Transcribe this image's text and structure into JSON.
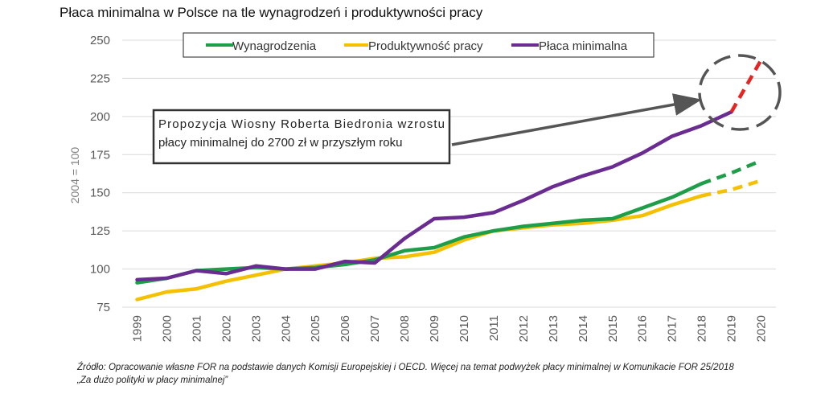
{
  "chart_data": {
    "type": "line",
    "title": "Płaca minimalna w Polsce na tle wynagrodzeń i produktywności pracy",
    "ylabel": "2004 = 100",
    "xlabel": "",
    "ylim": [
      75,
      250
    ],
    "yticks": [
      75,
      100,
      125,
      150,
      175,
      200,
      225,
      250
    ],
    "grid": "horizontal",
    "legend_position": "top",
    "x": [
      "1999",
      "2000",
      "2001",
      "2002",
      "2003",
      "2004",
      "2005",
      "2006",
      "2007",
      "2008",
      "2009",
      "2010",
      "2011",
      "2012",
      "2013",
      "2014",
      "2015",
      "2016",
      "2017",
      "2018",
      "2019",
      "2020"
    ],
    "series": [
      {
        "name": "Wynagrodzenia",
        "color": "#1f9e4a",
        "values": [
          91,
          94,
          99,
          100,
          101,
          100,
          101,
          103,
          106,
          112,
          114,
          121,
          125,
          128,
          130,
          132,
          133,
          140,
          147,
          156,
          null,
          null
        ],
        "projection": {
          "start_index": 19,
          "values": [
            156,
            163,
            171
          ]
        }
      },
      {
        "name": "Produktywność pracy",
        "color": "#f5c000",
        "values": [
          80,
          85,
          87,
          92,
          96,
          100,
          102,
          104,
          107,
          108,
          111,
          119,
          125,
          127,
          129,
          130,
          132,
          135,
          142,
          148,
          null,
          null
        ],
        "projection": {
          "start_index": 19,
          "values": [
            148,
            152,
            158
          ]
        }
      },
      {
        "name": "Płaca minimalna",
        "color": "#6a2c91",
        "values": [
          93,
          94,
          99,
          97,
          102,
          100,
          100,
          105,
          104,
          120,
          133,
          134,
          137,
          145,
          154,
          161,
          167,
          176,
          187,
          194,
          203,
          null
        ],
        "projection": {
          "start_index": 20,
          "values": [
            203,
            237
          ],
          "color": "#e52521"
        }
      }
    ],
    "annotation": {
      "text_line1": "Propozycja Wiosny Roberta Biedronia wzrostu",
      "text_line2": "płacy minimalnej do 2700 zł w przyszłym roku"
    }
  },
  "source": {
    "line1": "Źródło: Opracowanie własne FOR na podstawie danych Komisji Europejskiej i OECD. Więcej na temat podwyżek płacy minimalnej w Komunikacie FOR 25/2018",
    "line2": "„Za dużo polityki w płacy minimalnej”"
  }
}
